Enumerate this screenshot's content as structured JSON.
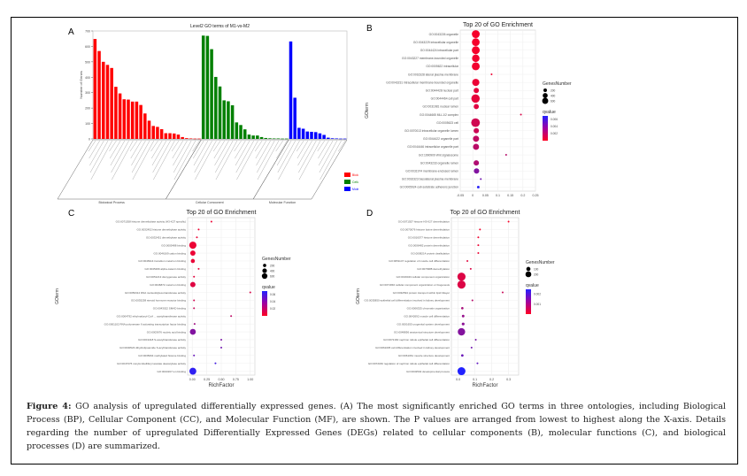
{
  "figure": {
    "panel_labels": [
      "A",
      "B",
      "C",
      "D"
    ],
    "caption_label": "Figure 4:",
    "caption_text": "GO analysis of upregulated differentially expressed genes. (A) The most significantly enriched GO terms in three ontologies, including Biological Process (BP), Cellular Component (CC), and Molecular Function (MF), are shown. The P values are arranged from lowest to highest along the X-axis. Details regarding the number of upregulated Differentially Expressed Genes (DEGs) related to cellular components (B), molecular functions (C), and biological processes (D) are summarized."
  },
  "colors": {
    "bp": "#ff0000",
    "cc": "#008000",
    "mf": "#0000ff",
    "q_low": "#ff0022",
    "q_high": "#2222ff"
  },
  "chart_data": [
    {
      "type": "bar",
      "panel": "A",
      "title": "Level2 GO terms of M1-vs-M2",
      "ylabel": "Number of Genes",
      "ylim": [
        0,
        700
      ],
      "yticks": [
        0,
        100,
        200,
        300,
        400,
        500,
        600,
        700
      ],
      "legend": [
        "Biological Process",
        "Cellular Component",
        "Molecular Function"
      ],
      "legend_position": "right",
      "series": [
        {
          "name": "Biological Process",
          "color": "#ff0000",
          "values": [
            648,
            570,
            500,
            480,
            460,
            338,
            295,
            257,
            255,
            242,
            242,
            220,
            165,
            118,
            84,
            78,
            63,
            37,
            37,
            35,
            28,
            12,
            5,
            3,
            2,
            2
          ]
        },
        {
          "name": "Cellular Component",
          "color": "#008000",
          "values": [
            670,
            668,
            582,
            402,
            340,
            250,
            244,
            218,
            107,
            90,
            62,
            28,
            22,
            22,
            12,
            6,
            4,
            3,
            3,
            2,
            2
          ]
        },
        {
          "name": "Molecular Function",
          "color": "#0000ff",
          "values": [
            632,
            267,
            72,
            66,
            48,
            46,
            44,
            36,
            26,
            8,
            4,
            3,
            2,
            2
          ]
        }
      ]
    },
    {
      "type": "scatter",
      "panel": "B",
      "title": "Top 20 of GO Enrichment",
      "xlabel": "RichFactor",
      "ylabel": "GOterm",
      "xlim": [
        -0.05,
        0.25
      ],
      "xticks": [
        -0.05,
        0.0,
        0.05,
        0.1,
        0.15,
        0.2,
        0.25
      ],
      "size_legend": {
        "title": "GenesNumber",
        "values": [
          200,
          400,
          600
        ]
      },
      "color_legend": {
        "title": "qvalue",
        "values": [
          0.006,
          0.004,
          0.002
        ],
        "range": [
          0,
          0.007
        ]
      },
      "terms": [
        "GO:0043226 organelle",
        "GO:0043229 intracellular organelle",
        "GO:0044424 intracellular part",
        "GO:0043227 membrane-bounded organelle",
        "GO:0005622 intracellular",
        "GO:0016328 lateral plasma membrane",
        "GO:0043231 intracellular membrane-bounded organelle",
        "GO:0044428 nuclear part",
        "GO:0044464 cell part",
        "GO:0031981 nuclear lumen",
        "GO:0044665 MLL1/2 complex",
        "GO:0005623 cell",
        "GO:0070013 intracellular organelle lumen",
        "GO:0044422 organelle part",
        "GO:0044446 intracellular organelle part",
        "GO:1990909 Wnt signalosome",
        "GO:0043233 organelle lumen",
        "GO:0031974 membrane-enclosed lumen",
        "GO:0016323 basolateral plasma membrane",
        "GO:0005924 cell-substrate adherens junction"
      ],
      "richfactor": [
        0.012,
        0.012,
        0.012,
        0.012,
        0.012,
        0.075,
        0.012,
        0.014,
        0.011,
        0.014,
        0.192,
        0.011,
        0.014,
        0.013,
        0.013,
        0.133,
        0.014,
        0.015,
        0.032,
        0.022
      ],
      "genes": [
        560,
        540,
        560,
        510,
        560,
        4,
        470,
        250,
        640,
        240,
        3,
        680,
        260,
        340,
        330,
        3,
        260,
        260,
        30,
        60
      ],
      "qvalue": [
        0.0003,
        0.0003,
        0.0003,
        0.0004,
        0.0004,
        0.0005,
        0.0006,
        0.0008,
        0.0008,
        0.001,
        0.0012,
        0.0015,
        0.0016,
        0.002,
        0.0022,
        0.0023,
        0.0025,
        0.004,
        0.0045,
        0.0068
      ]
    },
    {
      "type": "scatter",
      "panel": "C",
      "title": "Top 20 of GO Enrichment",
      "xlabel": "RichFactor",
      "ylabel": "GOterm",
      "xlim": [
        -0.08,
        1.08
      ],
      "xticks": [
        0.0,
        0.25,
        0.5,
        0.75,
        1.0
      ],
      "xticklabels": [
        "0.00",
        "0.25",
        "0.50",
        "0.75",
        "1.00"
      ],
      "size_legend": {
        "title": "GenesNumber",
        "values": [
          200,
          400,
          600
        ]
      },
      "color_legend": {
        "title": "qvalue",
        "values": [
          0.06,
          0.04,
          0.02
        ],
        "range": [
          0,
          0.07
        ]
      },
      "terms": [
        "GO:0071558 histone demethylase activity (H3-K27 specific)",
        "GO:0032452 histone demethylase activity",
        "GO:0032451 demethylase activity",
        "GO:0005488 binding",
        "GO:0046169 cation binding",
        "GO:0046914 transition metal ion binding",
        "GO:0045296 alpha-catenin binding",
        "GO:0051213 dioxygenase activity",
        "GO:0046872 metal ion binding",
        "GO:0050312 DNA nucleotidylexotransferase activity",
        "GO:0035258 steroid hormone receptor binding",
        "GO:0043022 SMAD binding",
        "GO:0004792 ethylmalonyl-CoA ... acetyltransferase activity",
        "GO:0001102 RNA polymerase II activating transcription factor binding",
        "GO:0003676 nucleic acid binding",
        "GO:0019418 S-acetyltransferase activity",
        "GO:0030523 dihydrolipoamide S-acyltransferase activity",
        "GO:0035064 methylated histone binding",
        "GO:0047376 nonylumbelliferyl acetate deacetylase activity",
        "GO:0043167 ion binding"
      ],
      "richfactor": [
        0.33,
        0.11,
        0.08,
        0.01,
        0.01,
        0.01,
        0.11,
        0.03,
        0.01,
        1.0,
        0.03,
        0.03,
        0.67,
        0.04,
        0.01,
        0.5,
        0.5,
        0.03,
        0.4,
        0.01
      ],
      "genes": [
        4,
        6,
        8,
        560,
        300,
        180,
        6,
        12,
        300,
        2,
        12,
        10,
        2,
        8,
        380,
        3,
        3,
        10,
        2,
        520
      ],
      "qvalue": [
        0.005,
        0.005,
        0.006,
        0.006,
        0.006,
        0.007,
        0.008,
        0.009,
        0.01,
        0.012,
        0.015,
        0.018,
        0.021,
        0.03,
        0.04,
        0.042,
        0.045,
        0.048,
        0.06,
        0.066
      ]
    },
    {
      "type": "scatter",
      "panel": "D",
      "title": "Top 20 of GO Enrichment",
      "xlabel": "RichFactor",
      "ylabel": "GOterm",
      "xlim": [
        -0.04,
        0.36
      ],
      "xticks": [
        0.0,
        0.1,
        0.2,
        0.3
      ],
      "xticklabels": [
        "0.0",
        "0.1",
        "0.2",
        "0.3"
      ],
      "size_legend": {
        "title": "GenesNumber",
        "values": [
          100,
          200
        ]
      },
      "color_legend": {
        "title": "qvalue",
        "values": [
          0.002,
          0.001
        ],
        "range": [
          0,
          0.0025
        ]
      },
      "terms": [
        "GO:0071557 histone H3-K27 demethylation",
        "GO:0070076 histone lysine demethylation",
        "GO:0016577 histone demethylation",
        "GO:0006482 protein demethylation",
        "GO:0008214 protein dealkylation",
        "GO:0051147 regulation of muscle cell differentiation",
        "GO:0070988 demethylation",
        "GO:0016043 cellular component organization",
        "GO:0071840 cellular component organization or biogenesis",
        "GO:0032594 protein transport within lipid bilayer",
        "GO:0035850 epithelial cell differentiation involved in kidney development",
        "GO:0006325 chromatin organization",
        "GO:0042692 muscle cell differentiation",
        "GO:0001655 urogenital system development",
        "GO:0048856 anatomical structure development",
        "GO:0072160 nephron tubule epithelial cell differentiation",
        "GO:0061005 cell differentiation involved in kidney development",
        "GO:0061061 muscle structure development",
        "GO:0072182 regulation of nephron tubule epithelial cell differentiation",
        "GO:0032502 developmental process"
      ],
      "richfactor": [
        0.3,
        0.13,
        0.12,
        0.12,
        0.12,
        0.055,
        0.075,
        0.02,
        0.02,
        0.265,
        0.085,
        0.025,
        0.03,
        0.03,
        0.02,
        0.105,
        0.08,
        0.025,
        0.115,
        0.02
      ],
      "genes": [
        3,
        5,
        6,
        6,
        6,
        10,
        8,
        220,
        220,
        3,
        6,
        18,
        22,
        26,
        180,
        5,
        6,
        20,
        4,
        210
      ],
      "qvalue": [
        5e-05,
        0.0001,
        0.00015,
        0.0002,
        0.0002,
        0.0003,
        0.0004,
        0.0004,
        0.0004,
        0.0006,
        0.0008,
        0.001,
        0.0012,
        0.0013,
        0.0014,
        0.0015,
        0.0016,
        0.0017,
        0.0018,
        0.0025
      ]
    }
  ]
}
